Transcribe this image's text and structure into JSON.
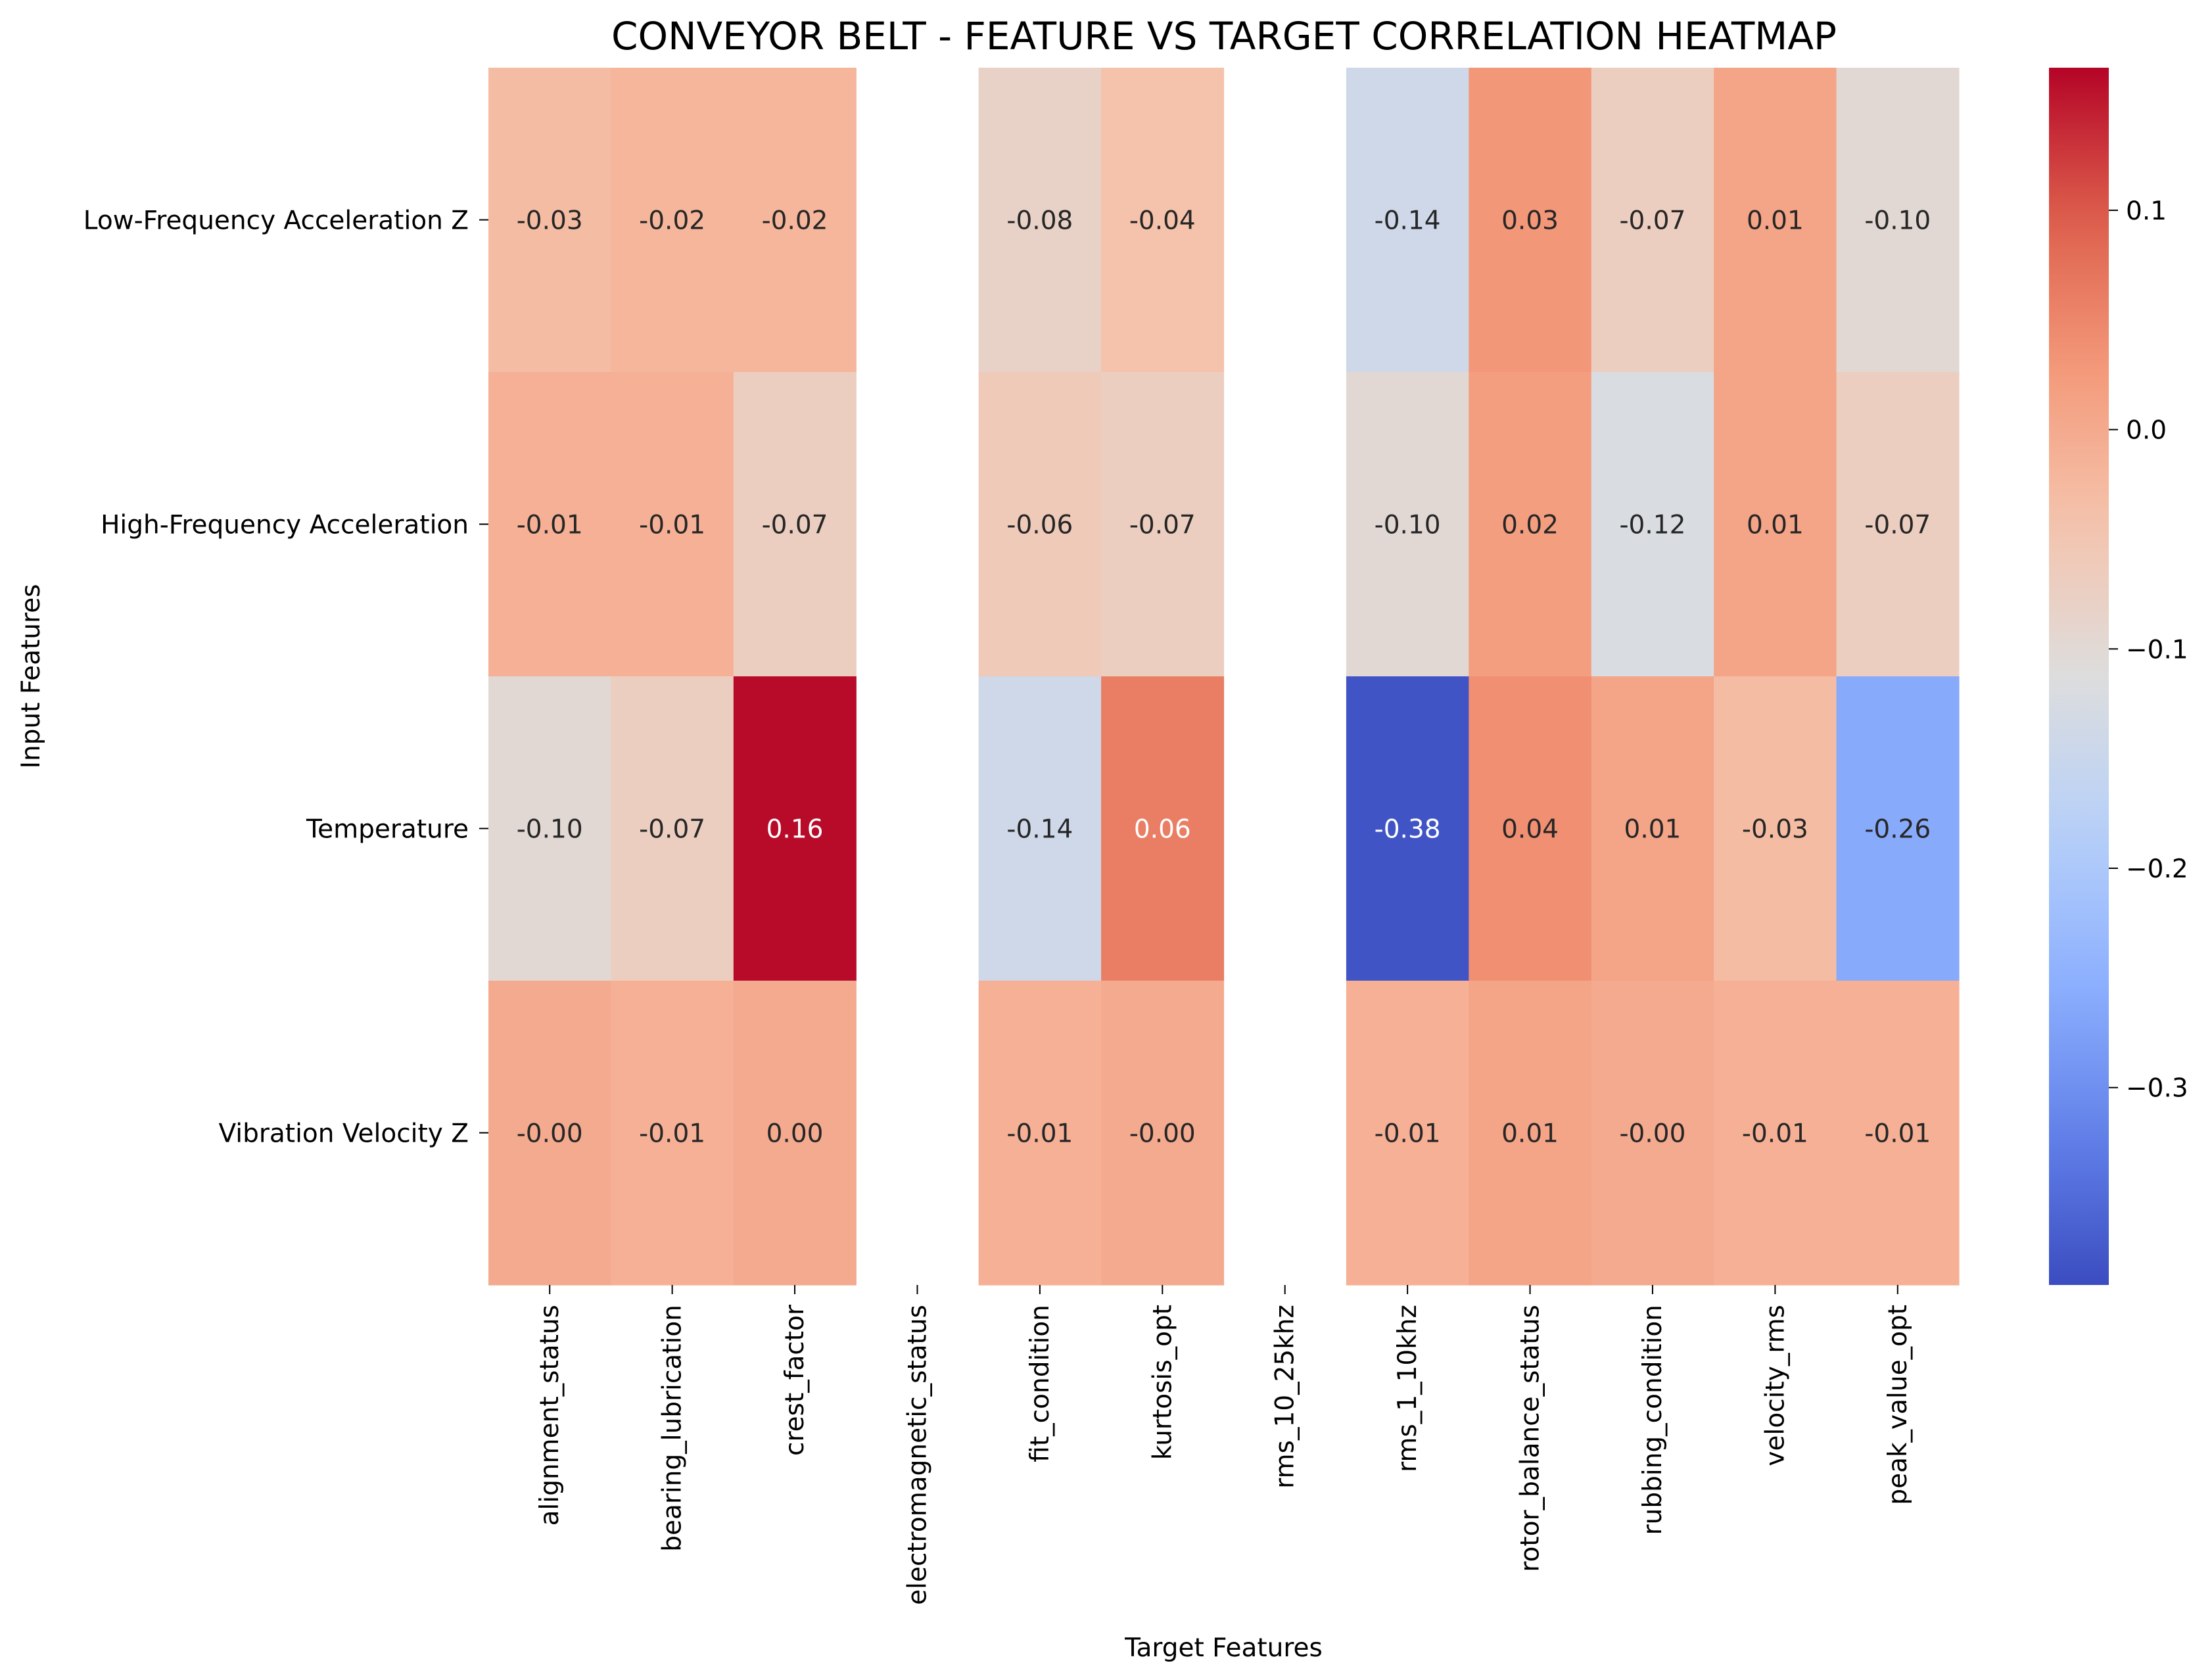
{
  "chart_data": {
    "type": "heatmap",
    "title": "CONVEYOR BELT - FEATURE VS TARGET CORRELATION HEATMAP",
    "xlabel": "Target Features",
    "ylabel": "Input Features",
    "x_categories": [
      "alignment_status",
      "bearing_lubrication",
      "crest_factor",
      "electromagnetic_status",
      "fit_condition",
      "kurtosis_opt",
      "rms_10_25khz",
      "rms_1_10khz",
      "rotor_balance_status",
      "rubbing_condition",
      "velocity_rms",
      "peak_value_opt"
    ],
    "y_categories": [
      "Low-Frequency Acceleration Z",
      "High-Frequency Acceleration",
      "Temperature",
      "Vibration Velocity Z"
    ],
    "values": [
      [
        -0.03,
        -0.02,
        -0.02,
        null,
        -0.08,
        -0.04,
        null,
        -0.14,
        0.03,
        -0.07,
        0.01,
        -0.1
      ],
      [
        -0.01,
        -0.01,
        -0.07,
        null,
        -0.06,
        -0.07,
        null,
        -0.1,
        0.02,
        -0.12,
        0.01,
        -0.07
      ],
      [
        -0.1,
        -0.07,
        0.16,
        null,
        -0.14,
        0.06,
        null,
        -0.38,
        0.04,
        0.01,
        -0.03,
        -0.26
      ],
      [
        -0.0,
        -0.01,
        0.0,
        null,
        -0.01,
        -0.0,
        null,
        -0.01,
        0.01,
        -0.0,
        -0.01,
        -0.01
      ]
    ],
    "value_labels": [
      [
        "-0.03",
        "-0.02",
        "-0.02",
        "",
        "-0.08",
        "-0.04",
        "",
        "-0.14",
        "0.03",
        "-0.07",
        "0.01",
        "-0.10"
      ],
      [
        "-0.01",
        "-0.01",
        "-0.07",
        "",
        "-0.06",
        "-0.07",
        "",
        "-0.10",
        "0.02",
        "-0.12",
        "0.01",
        "-0.07"
      ],
      [
        "-0.10",
        "-0.07",
        "0.16",
        "",
        "-0.14",
        "0.06",
        "",
        "-0.38",
        "0.04",
        "0.01",
        "-0.03",
        "-0.26"
      ],
      [
        "-0.00",
        "-0.01",
        "0.00",
        "",
        "-0.01",
        "-0.00",
        "",
        "-0.01",
        "0.01",
        "-0.00",
        "-0.01",
        "-0.01"
      ]
    ],
    "colormap": "coolwarm",
    "color_range": [
      -0.39,
      0.165
    ],
    "colorbar_ticks": [
      0.1,
      0.0,
      -0.1,
      -0.2,
      -0.3
    ],
    "colorbar_tick_labels": [
      "0.1",
      "0.0",
      "−0.1",
      "−0.2",
      "−0.3"
    ],
    "grid": false,
    "colorbar_position": "right"
  }
}
